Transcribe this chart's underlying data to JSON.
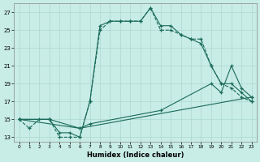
{
  "xlabel": "Humidex (Indice chaleur)",
  "bg_color": "#c8ece6",
  "grid_color": "#aad8d0",
  "line_color": "#1a6b5a",
  "xlim": [
    -0.5,
    23.5
  ],
  "ylim": [
    12.5,
    28
  ],
  "xticks": [
    0,
    1,
    2,
    3,
    4,
    5,
    6,
    7,
    8,
    9,
    10,
    11,
    12,
    13,
    14,
    15,
    16,
    17,
    18,
    19,
    20,
    21,
    22,
    23
  ],
  "yticks": [
    13,
    15,
    17,
    19,
    21,
    23,
    25,
    27
  ],
  "line1_x": [
    0,
    1,
    2,
    3,
    4,
    5,
    6,
    7,
    8,
    9,
    10,
    11,
    12,
    13,
    14,
    15,
    16,
    17,
    18,
    19,
    20,
    21,
    22,
    23
  ],
  "line1_y": [
    15,
    14,
    15,
    15,
    13,
    13,
    13,
    17,
    25,
    26,
    26,
    26,
    26,
    27.5,
    25,
    25,
    24.5,
    24,
    24,
    21,
    19,
    18.5,
    17.5,
    17
  ],
  "line1_style": "--",
  "line2_x": [
    0,
    3,
    4,
    5,
    6,
    7,
    8,
    9,
    10,
    11,
    12,
    13,
    14,
    15,
    16,
    17,
    18,
    19,
    20,
    21,
    22,
    23
  ],
  "line2_y": [
    15,
    15,
    13.5,
    13.5,
    13,
    17,
    25.5,
    26,
    26,
    26,
    26,
    27.5,
    25.5,
    25.5,
    24.5,
    24,
    23.5,
    21,
    19,
    19,
    18,
    17
  ],
  "line2_style": "-",
  "line3_x": [
    0,
    3,
    6,
    23
  ],
  "line3_y": [
    15,
    15,
    14,
    17.5
  ],
  "line3_style": "-",
  "line4_x": [
    0,
    6,
    7,
    14,
    19,
    20,
    21,
    22,
    23
  ],
  "line4_y": [
    15,
    14,
    14.5,
    16,
    19,
    18,
    21,
    18.5,
    17.5
  ],
  "line4_style": "-"
}
